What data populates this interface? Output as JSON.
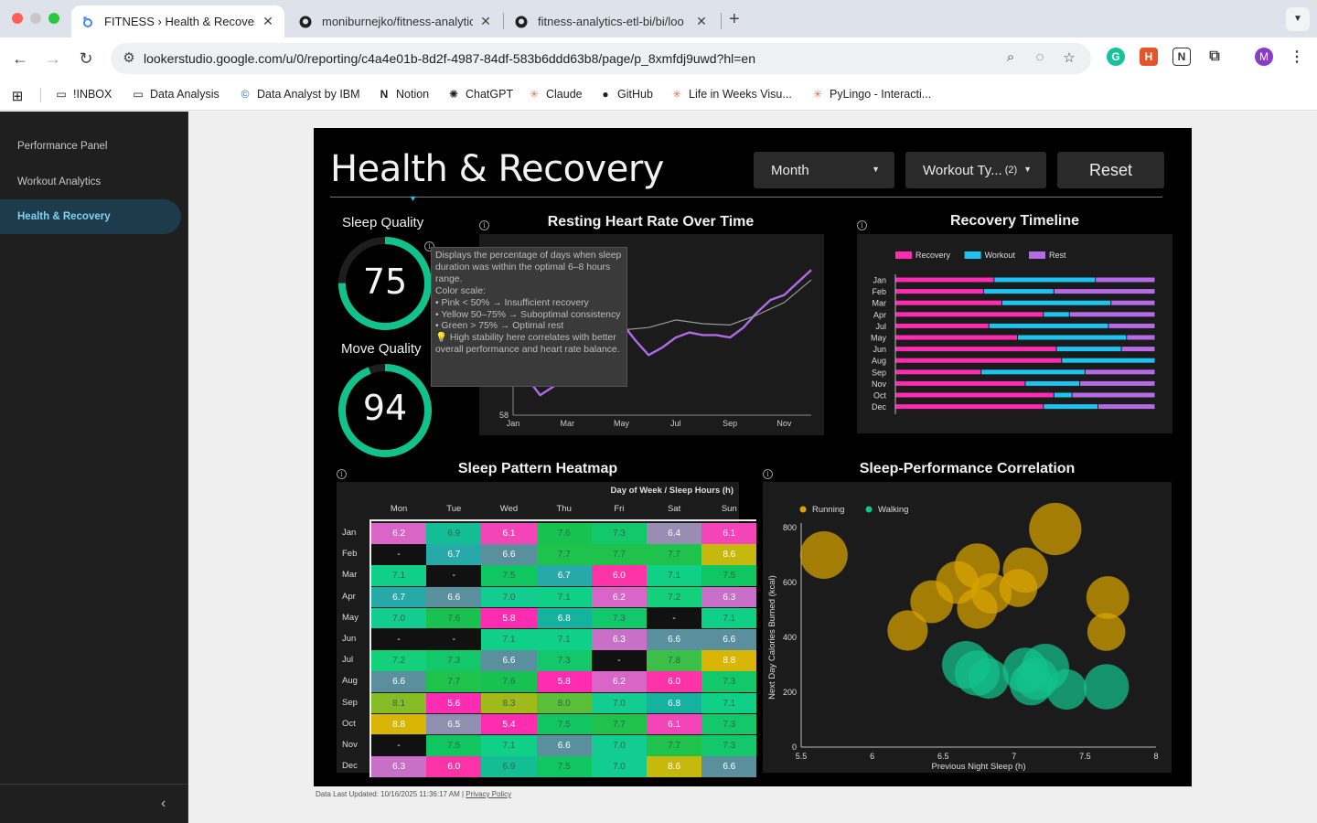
{
  "browser": {
    "tabs": [
      {
        "title": "FITNESS › Health & Recovery",
        "active": true
      },
      {
        "title": "moniburnejko/fitness-analytic",
        "active": false
      },
      {
        "title": "fitness-analytics-etl-bi/bi/loo",
        "active": false
      }
    ],
    "url": "lookerstudio.google.com/u/0/reporting/c4a4e01b-8d2f-4987-84df-583b6ddd63b8/page/p_8xmfdj9uwd?hl=en",
    "profile_initial": "M",
    "bookmarks": [
      "!INBOX",
      "Data Analysis",
      "Data Analyst by IBM",
      "Notion",
      "ChatGPT",
      "Claude",
      "GitHub",
      "Life in Weeks Visu...",
      "PyLingo - Interacti..."
    ]
  },
  "sidebar": {
    "items": [
      {
        "label": "Performance Panel",
        "active": false
      },
      {
        "label": "Workout Analytics",
        "active": false
      },
      {
        "label": "Health & Recovery",
        "active": true
      }
    ]
  },
  "report": {
    "title": "Health & Recovery",
    "controls": {
      "month_label": "Month",
      "workout_label": "Workout Ty...",
      "workout_count": "(2)",
      "reset_label": "Reset"
    },
    "sleep_quality": {
      "label": "Sleep Quality",
      "value": 75,
      "color": "#12c28c"
    },
    "move_quality": {
      "label": "Move Quality",
      "value": 94,
      "color": "#12c28c"
    },
    "tooltip": {
      "lines": [
        "Displays the percentage of days when sleep duration was within the optimal 6–8 hours range.",
        "Color scale:",
        "• Pink < 50% → Insufficient recovery",
        "• Yellow 50–75% → Suboptimal consistency",
        "• Green > 75% → Optimal rest",
        "💡 High stability here correlates with better overall performance and heart rate balance."
      ]
    },
    "footer": {
      "updated": "Data Last Updated: 10/16/2025 11:36:17 AM",
      "privacy": "Privacy Policy"
    }
  },
  "chart_data": [
    {
      "type": "line",
      "title": "Resting Heart Rate Over Time",
      "x_ticks": [
        "Jan",
        "Mar",
        "May",
        "Jul",
        "Sep",
        "Nov"
      ],
      "y_tick_labels": [
        "58"
      ],
      "series": [
        {
          "color": "#b06ae8",
          "x": [
            1,
            1.5,
            2,
            2.5,
            3,
            3.5,
            4,
            4.5,
            5,
            5.5,
            6,
            6.5,
            7,
            7.5,
            8,
            8.5,
            9,
            9.5,
            10,
            10.5,
            11,
            11.5,
            12
          ],
          "y": [
            62.6,
            61.0,
            59.6,
            60.3,
            61.8,
            63.0,
            63.6,
            64.6,
            65.4,
            64.0,
            62.8,
            63.4,
            64.2,
            64.6,
            64.4,
            64.4,
            64.2,
            65.0,
            66.2,
            67.2,
            67.6,
            68.6,
            69.6
          ]
        },
        {
          "color": "#999999",
          "x": [
            4.6,
            5,
            6,
            7,
            8,
            9,
            10,
            11,
            12
          ],
          "y": [
            65.0,
            64.8,
            65.0,
            65.6,
            65.3,
            65.2,
            66.0,
            67.0,
            68.8
          ]
        }
      ]
    },
    {
      "type": "bar",
      "title": "Recovery Timeline",
      "stacked": "100%",
      "categories": [
        "Jan",
        "Feb",
        "Mar",
        "Apr",
        "Jul",
        "May",
        "Jun",
        "Aug",
        "Sep",
        "Nov",
        "Oct",
        "Dec"
      ],
      "series": [
        {
          "name": "Recovery",
          "color": "#ff2bb0",
          "values": [
            38,
            34,
            41,
            57,
            36,
            47,
            62,
            64,
            33,
            50,
            61,
            57
          ]
        },
        {
          "name": "Workout",
          "color": "#1ec4ef",
          "values": [
            39,
            27,
            42,
            10,
            46,
            42,
            25,
            36,
            40,
            21,
            7,
            21
          ]
        },
        {
          "name": "Rest",
          "color": "#b56be6",
          "values": [
            23,
            39,
            17,
            33,
            18,
            11,
            13,
            0,
            27,
            29,
            32,
            22
          ]
        }
      ]
    },
    {
      "type": "heatmap",
      "title": "Sleep Pattern Heatmap",
      "column_header": "Day of Week / Sleep Hours (h)",
      "columns": [
        "Mon",
        "Tue",
        "Wed",
        "Thu",
        "Fri",
        "Sat",
        "Sun"
      ],
      "rows": [
        "Jan",
        "Feb",
        "Mar",
        "Apr",
        "May",
        "Jun",
        "Jul",
        "Aug",
        "Sep",
        "Oct",
        "Nov",
        "Dec"
      ],
      "values": [
        [
          "6.2",
          "6.9",
          "6.1",
          "7.6",
          "7.3",
          "6.4",
          "6.1"
        ],
        [
          "-",
          "6.7",
          "6.6",
          "7.7",
          "7.7",
          "7.7",
          "8.6"
        ],
        [
          "7.1",
          "-",
          "7.5",
          "6.7",
          "6.0",
          "7.1",
          "7.5"
        ],
        [
          "6.7",
          "6.6",
          "7.0",
          "7.1",
          "6.2",
          "7.2",
          "6.3"
        ],
        [
          "7.0",
          "7.6",
          "5.8",
          "6.8",
          "7.3",
          "-",
          "7.1"
        ],
        [
          "-",
          "-",
          "7.1",
          "7.1",
          "6.3",
          "6.6",
          "6.6"
        ],
        [
          "7.2",
          "7.3",
          "6.6",
          "7.3",
          "-",
          "7.8",
          "8.8"
        ],
        [
          "6.6",
          "7.7",
          "7.6",
          "5.8",
          "6.2",
          "6.0",
          "7.3"
        ],
        [
          "8.1",
          "5.6",
          "8.3",
          "8.0",
          "7.0",
          "6.8",
          "7.1"
        ],
        [
          "8.8",
          "6.5",
          "5.4",
          "7.5",
          "7.7",
          "6.1",
          "7.3"
        ],
        [
          "-",
          "7.5",
          "7.1",
          "6.6",
          "7.0",
          "7.7",
          "7.3"
        ],
        [
          "6.3",
          "6.0",
          "6.9",
          "7.5",
          "7.0",
          "8.6",
          "6.6"
        ]
      ]
    },
    {
      "type": "scatter",
      "title": "Sleep-Performance Correlation",
      "xlabel": "Previous Night Sleep (h)",
      "ylabel": "Next Day Calories Burned (kcal)",
      "xlim": [
        5.5,
        8
      ],
      "ylim": [
        0,
        800
      ],
      "x_ticks": [
        "5.5",
        "6",
        "6.5",
        "7",
        "7.5",
        "8"
      ],
      "y_ticks": [
        "0",
        "200",
        "400",
        "600",
        "800"
      ],
      "series": [
        {
          "name": "Running",
          "color": "#d9a400",
          "points": [
            {
              "x": 5.66,
              "y": 700,
              "size": 1.0
            },
            {
              "x": 6.25,
              "y": 425,
              "size": 0.85
            },
            {
              "x": 6.42,
              "y": 530,
              "size": 0.9
            },
            {
              "x": 6.6,
              "y": 600,
              "size": 0.9
            },
            {
              "x": 6.74,
              "y": 660,
              "size": 0.95
            },
            {
              "x": 6.74,
              "y": 505,
              "size": 0.85
            },
            {
              "x": 6.84,
              "y": 560,
              "size": 0.85
            },
            {
              "x": 7.03,
              "y": 580,
              "size": 0.8
            },
            {
              "x": 7.08,
              "y": 645,
              "size": 0.95
            },
            {
              "x": 7.29,
              "y": 795,
              "size": 1.1
            },
            {
              "x": 7.66,
              "y": 545,
              "size": 0.9
            },
            {
              "x": 7.65,
              "y": 420,
              "size": 0.8
            }
          ]
        },
        {
          "name": "Walking",
          "color": "#12c28c",
          "points": [
            {
              "x": 6.66,
              "y": 300,
              "size": 1.0
            },
            {
              "x": 6.74,
              "y": 270,
              "size": 0.95
            },
            {
              "x": 6.82,
              "y": 250,
              "size": 0.85
            },
            {
              "x": 7.08,
              "y": 280,
              "size": 0.95
            },
            {
              "x": 7.22,
              "y": 290,
              "size": 1.0
            },
            {
              "x": 7.12,
              "y": 230,
              "size": 0.9
            },
            {
              "x": 7.16,
              "y": 250,
              "size": 0.9
            },
            {
              "x": 7.37,
              "y": 210,
              "size": 0.85
            },
            {
              "x": 7.65,
              "y": 220,
              "size": 0.95
            }
          ]
        }
      ]
    }
  ]
}
